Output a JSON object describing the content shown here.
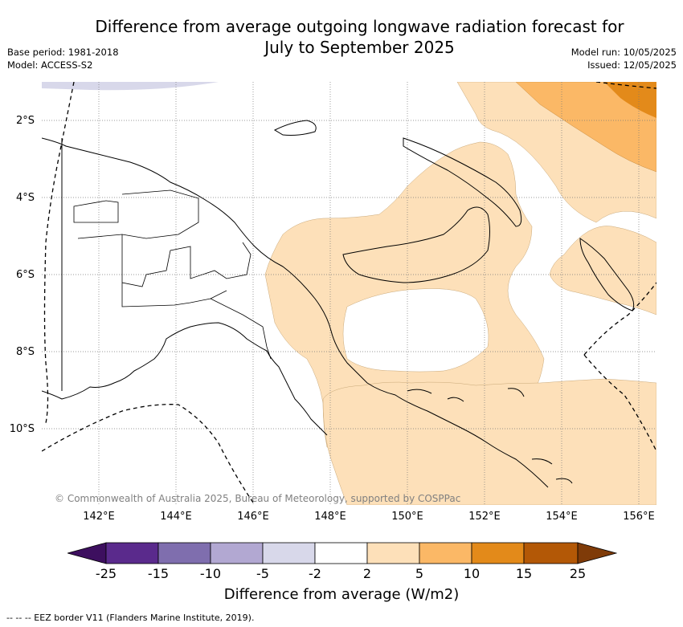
{
  "header": {
    "title_line1": "Difference from average outgoing longwave radiation forecast for",
    "title_line2": "July to September 2025",
    "base_period": "Base period: 1981-2018",
    "model": "Model: ACCESS-S2",
    "model_run": "Model run: 10/05/2025",
    "issued": "Issued: 12/05/2025"
  },
  "map": {
    "lat_labels": [
      "2°S",
      "4°S",
      "6°S",
      "8°S",
      "10°S"
    ],
    "lon_labels": [
      "142°E",
      "144°E",
      "146°E",
      "148°E",
      "150°E",
      "152°E",
      "154°E",
      "156°E"
    ],
    "copyright": "© Commonwealth of Australia 2025, Bureau of Meteorology, supported by COSPPac",
    "category_colors": {
      "pale_orange_2_to_5": "#fde0b9",
      "light_orange_5_to_10": "#fbb866",
      "orange_10_to_15": "#e38a1a",
      "pale_lavender_minus5_to_minus2": "#d8d8ea"
    },
    "land_color": "#ffffff",
    "border_color": "#000000"
  },
  "colorbar": {
    "labels": [
      "-25",
      "-15",
      "-10",
      "-5",
      "-2",
      "2",
      "5",
      "10",
      "15",
      "25"
    ],
    "colors": [
      "#3d0f5f",
      "#5a2a8c",
      "#7f6eae",
      "#b2a8d2",
      "#d8d8ea",
      "#ffffff",
      "#fde0b9",
      "#fbb866",
      "#e38a1a",
      "#b35806",
      "#7f3b08"
    ],
    "title": "Difference from average (W/m2)"
  },
  "footnote": "--  --  -- EEZ border V11 (Flanders Marine Institute, 2019)."
}
